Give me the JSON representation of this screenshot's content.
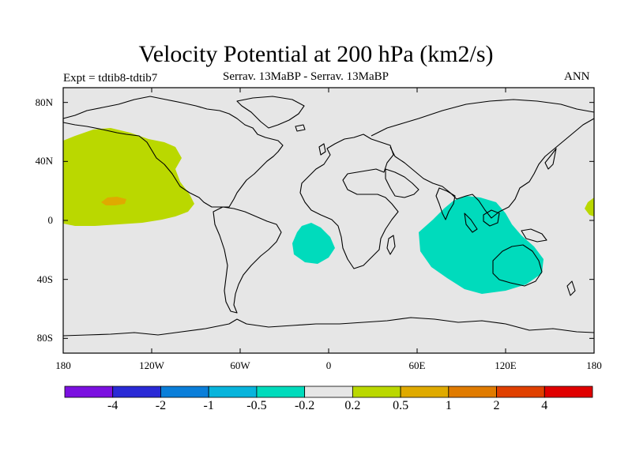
{
  "title": "Velocity Potential at 200 hPa (km2/s)",
  "subtitle_left": "Expt = tdtib8-tdtib7",
  "subtitle_center": "Serrav.   13MaBP - Serrav.   13MaBP",
  "subtitle_right": "ANN",
  "colors": {
    "map_background": "#e6e6e6",
    "coast": "#000000",
    "positive_fill": "#bad800",
    "positive_core_fill": "#dfaa00",
    "negative_fill": "#00dbbc"
  },
  "axes": {
    "lat_ticks": [
      {
        "value": 80,
        "label": "80N"
      },
      {
        "value": 40,
        "label": "40N"
      },
      {
        "value": 0,
        "label": "0"
      },
      {
        "value": -40,
        "label": "40S"
      },
      {
        "value": -80,
        "label": "80S"
      }
    ],
    "lon_ticks": [
      {
        "value": -180,
        "label": "180"
      },
      {
        "value": -120,
        "label": "120W"
      },
      {
        "value": -60,
        "label": "60W"
      },
      {
        "value": 0,
        "label": "0"
      },
      {
        "value": 60,
        "label": "60E"
      },
      {
        "value": 120,
        "label": "120E"
      },
      {
        "value": 180,
        "label": "180"
      }
    ]
  },
  "colorbar": {
    "colors": [
      "#7b10e0",
      "#2a2ad6",
      "#0a7ed9",
      "#08b4dc",
      "#00dbbc",
      "#e6e6e6",
      "#bad800",
      "#dfaa00",
      "#e07b00",
      "#e04000",
      "#e00000"
    ],
    "labels": [
      "-4",
      "-2",
      "-1",
      "-0.5",
      "-0.2",
      "0.2",
      "0.5",
      "1",
      "2",
      "4"
    ]
  },
  "chart_data": {
    "type": "heatmap",
    "title": "Velocity Potential at 200 hPa (km2/s)",
    "variable": "velocity potential difference",
    "level_hpa": 200,
    "units": "km2/s",
    "lon_range": [
      -180,
      180
    ],
    "lat_range": [
      -90,
      90
    ],
    "levels": [
      -4,
      -2,
      -1,
      -0.5,
      -0.2,
      0.2,
      0.5,
      1,
      2,
      4
    ],
    "regions": [
      {
        "name": "northeast pacific positive",
        "category": "0.2 to 0.5",
        "lon_range": [
          -180,
          -87
        ],
        "lat_range": [
          2,
          62
        ]
      },
      {
        "name": "northeast pacific core",
        "category": "0.5 to 1",
        "lon_range": [
          -150,
          -140
        ],
        "lat_range": [
          10,
          16
        ]
      },
      {
        "name": "south atlantic negative",
        "category": "-0.5 to -0.2",
        "lon_range": [
          -25,
          -3
        ],
        "lat_range": [
          -30,
          -1
        ]
      },
      {
        "name": "indian ocean negative",
        "category": "-0.5 to -0.2",
        "lon_range": [
          60,
          147
        ],
        "lat_range": [
          -48,
          17
        ]
      },
      {
        "name": "date line positive",
        "category": "0.2 to 0.5",
        "lon_range": [
          176,
          180
        ],
        "lat_range": [
          3,
          14
        ]
      }
    ]
  }
}
